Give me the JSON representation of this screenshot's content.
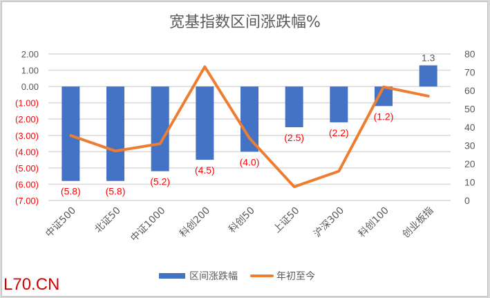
{
  "title": "宽基指数区间涨跌幅%",
  "watermark": "L70.CN",
  "legend": {
    "bar_label": "区间涨跌幅",
    "line_label": "年初至今"
  },
  "colors": {
    "bar": "#4472c4",
    "line": "#ed7d31",
    "negative_label": "#ff0000",
    "positive_label": "#595959",
    "grid": "#d9d9d9"
  },
  "chart_data": {
    "type": "bar+line",
    "title": "宽基指数区间涨跌幅%",
    "categories": [
      "中证500",
      "北证50",
      "中证1000",
      "科创200",
      "科创50",
      "上证50",
      "沪深300",
      "科创100",
      "创业板指"
    ],
    "series": [
      {
        "name": "区间涨跌幅",
        "type": "bar",
        "axis": "left",
        "values": [
          -5.8,
          -5.8,
          -5.2,
          -4.5,
          -4.0,
          -2.5,
          -2.2,
          -1.2,
          1.3
        ],
        "labels": [
          "(5.8)",
          "(5.8)",
          "(5.2)",
          "(4.5)",
          "(4.0)",
          "(2.5)",
          "(2.2)",
          "(1.2)",
          "1.3"
        ]
      },
      {
        "name": "年初至今",
        "type": "line",
        "axis": "right",
        "values": [
          35.5,
          27,
          31,
          73,
          34,
          7.5,
          16,
          62,
          57
        ]
      }
    ],
    "left_axis": {
      "ylim": [
        -7,
        2
      ],
      "ticks": [
        "2.00",
        "1.00",
        "0.00",
        "(1.00)",
        "(2.00)",
        "(3.00)",
        "(4.00)",
        "(5.00)",
        "(6.00)",
        "(7.00)"
      ]
    },
    "right_axis": {
      "ylim": [
        0,
        80
      ],
      "ticks": [
        "80",
        "70",
        "60",
        "50",
        "40",
        "30",
        "20",
        "10",
        "0"
      ]
    },
    "grid": true,
    "legend_position": "bottom"
  }
}
